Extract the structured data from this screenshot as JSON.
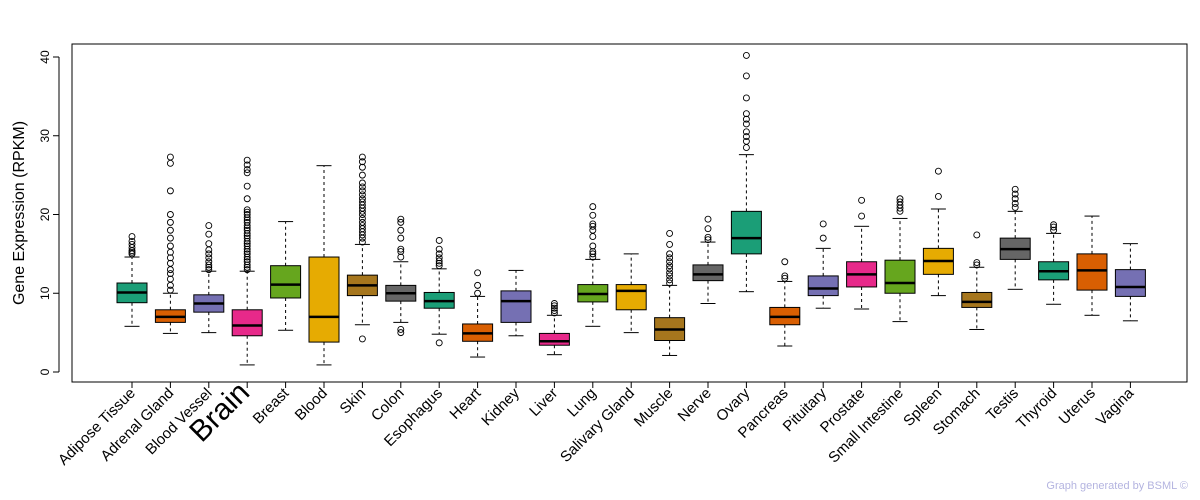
{
  "chart_data": {
    "type": "boxplot",
    "ylabel": "Gene Expression (RPKM)",
    "ylim": [
      0,
      42
    ],
    "yticks": [
      0,
      10,
      20,
      30,
      40
    ],
    "highlight": "Brain",
    "highlight_color": "#ff0000",
    "categories": [
      {
        "name": "Adipose Tissue",
        "color": "#1b9e77",
        "min": 5.8,
        "q1": 8.8,
        "median": 10.1,
        "q3": 11.3,
        "max": 14.6,
        "outliers": [
          15.0,
          15.2,
          15.4,
          15.8,
          16.2,
          16.6,
          17.2
        ]
      },
      {
        "name": "Adrenal Gland",
        "color": "#d95f02",
        "min": 4.9,
        "q1": 6.3,
        "median": 7.0,
        "q3": 7.9,
        "max": 10.0,
        "outliers": [
          10.4,
          11.0,
          11.8,
          12.5,
          13.0,
          13.8,
          14.5,
          15.2,
          16.0,
          17.0,
          18.0,
          19.0,
          20.0,
          23.0,
          26.5,
          27.3
        ]
      },
      {
        "name": "Blood Vessel",
        "color": "#7570b3",
        "min": 5.0,
        "q1": 7.6,
        "median": 8.7,
        "q3": 9.8,
        "max": 12.8,
        "outliers": [
          13.0,
          13.3,
          13.6,
          14.0,
          14.5,
          15.0,
          15.5,
          16.3,
          17.5,
          18.6
        ]
      },
      {
        "name": "Brain",
        "color": "#e7298a",
        "min": 0.9,
        "q1": 4.6,
        "median": 5.9,
        "q3": 7.9,
        "max": 12.8,
        "outliers": [
          13.0,
          13.3,
          13.6,
          14.0,
          14.3,
          14.6,
          15.0,
          15.3,
          15.6,
          16.0,
          16.3,
          16.6,
          17.0,
          17.3,
          17.6,
          18.0,
          18.3,
          18.6,
          19.0,
          19.3,
          19.6,
          20.0,
          20.3,
          20.6,
          22.0,
          23.6,
          25.3,
          25.7,
          26.3,
          26.9
        ]
      },
      {
        "name": "Breast",
        "color": "#66a61e",
        "min": 5.3,
        "q1": 9.4,
        "median": 11.1,
        "q3": 13.5,
        "max": 19.1,
        "outliers": []
      },
      {
        "name": "Blood",
        "color": "#e6ab02",
        "min": 0.9,
        "q1": 3.8,
        "median": 7.0,
        "q3": 14.6,
        "max": 26.2,
        "outliers": []
      },
      {
        "name": "Skin",
        "color": "#a6761d",
        "min": 6.0,
        "q1": 9.7,
        "median": 11.0,
        "q3": 12.3,
        "max": 16.2,
        "outliers": [
          4.2,
          16.5,
          17.0,
          17.4,
          17.8,
          18.2,
          18.6,
          19.0,
          19.5,
          20.0,
          20.4,
          20.8,
          21.2,
          21.6,
          22.0,
          22.5,
          23.0,
          23.5,
          24.0,
          25.0,
          26.0,
          26.7,
          27.3
        ]
      },
      {
        "name": "Colon",
        "color": "#666666",
        "min": 6.3,
        "q1": 9.0,
        "median": 10.0,
        "q3": 11.0,
        "max": 14.0,
        "outliers": [
          5.0,
          5.4,
          14.6,
          15.3,
          15.6,
          17.0,
          18.0,
          19.0,
          19.4
        ]
      },
      {
        "name": "Esophagus",
        "color": "#1b9e77",
        "min": 4.8,
        "q1": 8.1,
        "median": 9.0,
        "q3": 10.1,
        "max": 13.1,
        "outliers": [
          3.7,
          13.5,
          13.8,
          14.1,
          14.5,
          15.0,
          15.6,
          16.7
        ]
      },
      {
        "name": "Heart",
        "color": "#d95f02",
        "min": 1.9,
        "q1": 3.9,
        "median": 4.9,
        "q3": 6.1,
        "max": 9.6,
        "outliers": [
          10.0,
          11.0,
          12.6
        ]
      },
      {
        "name": "Kidney",
        "color": "#7570b3",
        "min": 4.6,
        "q1": 6.3,
        "median": 9.0,
        "q3": 10.3,
        "max": 12.9,
        "outliers": []
      },
      {
        "name": "Liver",
        "color": "#e7298a",
        "min": 2.2,
        "q1": 3.4,
        "median": 3.9,
        "q3": 4.9,
        "max": 7.2,
        "outliers": [
          7.5,
          7.8,
          8.1,
          8.4,
          8.7
        ]
      },
      {
        "name": "Lung",
        "color": "#66a61e",
        "min": 5.8,
        "q1": 8.9,
        "median": 9.9,
        "q3": 11.1,
        "max": 14.3,
        "outliers": [
          14.6,
          15.0,
          15.3,
          16.0,
          17.2,
          18.0,
          18.5,
          18.8,
          19.9,
          21.0
        ]
      },
      {
        "name": "Salivary Gland",
        "color": "#e6ab02",
        "min": 5.0,
        "q1": 7.9,
        "median": 10.3,
        "q3": 11.1,
        "max": 15.0,
        "outliers": []
      },
      {
        "name": "Muscle",
        "color": "#a6761d",
        "min": 2.1,
        "q1": 4.0,
        "median": 5.4,
        "q3": 6.9,
        "max": 11.0,
        "outliers": [
          11.3,
          11.7,
          12.2,
          12.6,
          13.1,
          13.5,
          14.0,
          14.5,
          15.0,
          16.2,
          17.6
        ]
      },
      {
        "name": "Nerve",
        "color": "#666666",
        "min": 8.7,
        "q1": 11.6,
        "median": 12.4,
        "q3": 13.6,
        "max": 16.5,
        "outliers": [
          16.8,
          17.1,
          18.2,
          19.4
        ]
      },
      {
        "name": "Ovary",
        "color": "#1b9e77",
        "min": 10.2,
        "q1": 15.0,
        "median": 17.0,
        "q3": 20.4,
        "max": 27.6,
        "outliers": [
          28.5,
          29.3,
          29.9,
          30.5,
          31.5,
          32.1,
          32.8,
          34.8,
          37.6,
          40.2
        ]
      },
      {
        "name": "Pancreas",
        "color": "#d95f02",
        "min": 3.3,
        "q1": 6.0,
        "median": 7.0,
        "q3": 8.2,
        "max": 11.5,
        "outliers": [
          11.9,
          12.2,
          14.0
        ]
      },
      {
        "name": "Pituitary",
        "color": "#7570b3",
        "min": 8.1,
        "q1": 9.7,
        "median": 10.6,
        "q3": 12.2,
        "max": 15.7,
        "outliers": [
          17.0,
          18.8
        ]
      },
      {
        "name": "Prostate",
        "color": "#e7298a",
        "min": 8.0,
        "q1": 10.8,
        "median": 12.4,
        "q3": 14.0,
        "max": 18.5,
        "outliers": [
          19.8,
          21.8
        ]
      },
      {
        "name": "Small Intestine",
        "color": "#66a61e",
        "min": 6.4,
        "q1": 10.0,
        "median": 11.3,
        "q3": 14.2,
        "max": 19.5,
        "outliers": [
          20.4,
          20.8,
          21.2,
          21.6,
          22.0
        ]
      },
      {
        "name": "Spleen",
        "color": "#e6ab02",
        "min": 9.7,
        "q1": 12.4,
        "median": 14.1,
        "q3": 15.7,
        "max": 20.7,
        "outliers": [
          22.3,
          25.5
        ]
      },
      {
        "name": "Stomach",
        "color": "#a6761d",
        "min": 5.4,
        "q1": 8.2,
        "median": 8.9,
        "q3": 10.1,
        "max": 13.3,
        "outliers": [
          13.6,
          13.9,
          17.4
        ]
      },
      {
        "name": "Testis",
        "color": "#666666",
        "min": 10.5,
        "q1": 14.3,
        "median": 15.6,
        "q3": 17.0,
        "max": 20.4,
        "outliers": [
          20.9,
          21.4,
          22.0,
          22.6,
          23.2
        ]
      },
      {
        "name": "Thyroid",
        "color": "#1b9e77",
        "min": 8.6,
        "q1": 11.7,
        "median": 12.8,
        "q3": 14.0,
        "max": 17.6,
        "outliers": [
          18.0,
          18.4,
          18.7
        ]
      },
      {
        "name": "Uterus",
        "color": "#d95f02",
        "min": 7.2,
        "q1": 10.4,
        "median": 12.9,
        "q3": 15.0,
        "max": 19.8,
        "outliers": []
      },
      {
        "name": "Vagina",
        "color": "#7570b3",
        "min": 6.5,
        "q1": 9.6,
        "median": 10.8,
        "q3": 13.0,
        "max": 16.3,
        "outliers": []
      }
    ]
  },
  "footer": {
    "credit": "Graph generated by BSML ©"
  }
}
